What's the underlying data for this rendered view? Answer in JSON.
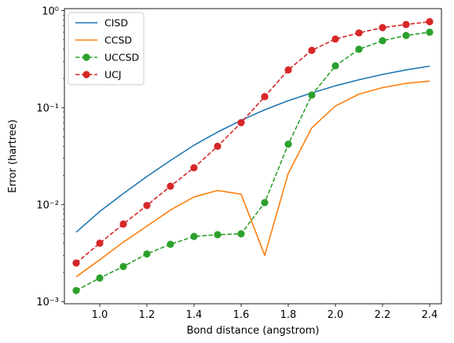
{
  "chart_data": {
    "type": "line",
    "title": "",
    "xlabel": "Bond distance (angstrom)",
    "ylabel": "Error (hartree)",
    "xlim": [
      0.85,
      2.45
    ],
    "ylim": [
      0.00095,
      1.05
    ],
    "yscale": "log",
    "grid": false,
    "legend_position": "top-left",
    "x_ticks": [
      1.0,
      1.2,
      1.4,
      1.6,
      1.8,
      2.0,
      2.2,
      2.4
    ],
    "x_tick_labels": [
      "1.0",
      "1.2",
      "1.4",
      "1.6",
      "1.8",
      "2.0",
      "2.2",
      "2.4"
    ],
    "y_ticks": [
      0.001,
      0.01,
      0.1,
      1
    ],
    "y_tick_labels": [
      "10⁻³",
      "10⁻²",
      "10⁻¹",
      "10⁰"
    ],
    "x": [
      0.9,
      1.0,
      1.1,
      1.2,
      1.3,
      1.4,
      1.5,
      1.6,
      1.7,
      1.8,
      1.9,
      2.0,
      2.1,
      2.2,
      2.3,
      2.4
    ],
    "series": [
      {
        "name": "CISD",
        "color": "#1f77b4",
        "line_style": "solid",
        "marker": "none",
        "values": [
          0.0052,
          0.0085,
          0.013,
          0.0195,
          0.0285,
          0.041,
          0.056,
          0.074,
          0.095,
          0.118,
          0.142,
          0.168,
          0.194,
          0.22,
          0.245,
          0.268
        ]
      },
      {
        "name": "CCSD",
        "color": "#ff7f0e",
        "line_style": "solid",
        "marker": "none",
        "values": [
          0.0018,
          0.0027,
          0.0041,
          0.006,
          0.0088,
          0.012,
          0.014,
          0.0128,
          0.003,
          0.021,
          0.062,
          0.104,
          0.138,
          0.161,
          0.178,
          0.188
        ]
      },
      {
        "name": "UCCSD",
        "color": "#2ca02c",
        "line_style": "dashed",
        "marker": "circle",
        "values": [
          0.0013,
          0.00175,
          0.0023,
          0.0031,
          0.0039,
          0.0047,
          0.0049,
          0.005,
          0.0105,
          0.042,
          0.135,
          0.27,
          0.4,
          0.49,
          0.555,
          0.6
        ]
      },
      {
        "name": "UCJ",
        "color": "#d62728",
        "line_style": "dashed",
        "marker": "circle",
        "values": [
          0.0025,
          0.004,
          0.0063,
          0.0098,
          0.0155,
          0.024,
          0.04,
          0.07,
          0.13,
          0.245,
          0.39,
          0.51,
          0.59,
          0.67,
          0.72,
          0.77
        ]
      }
    ]
  }
}
